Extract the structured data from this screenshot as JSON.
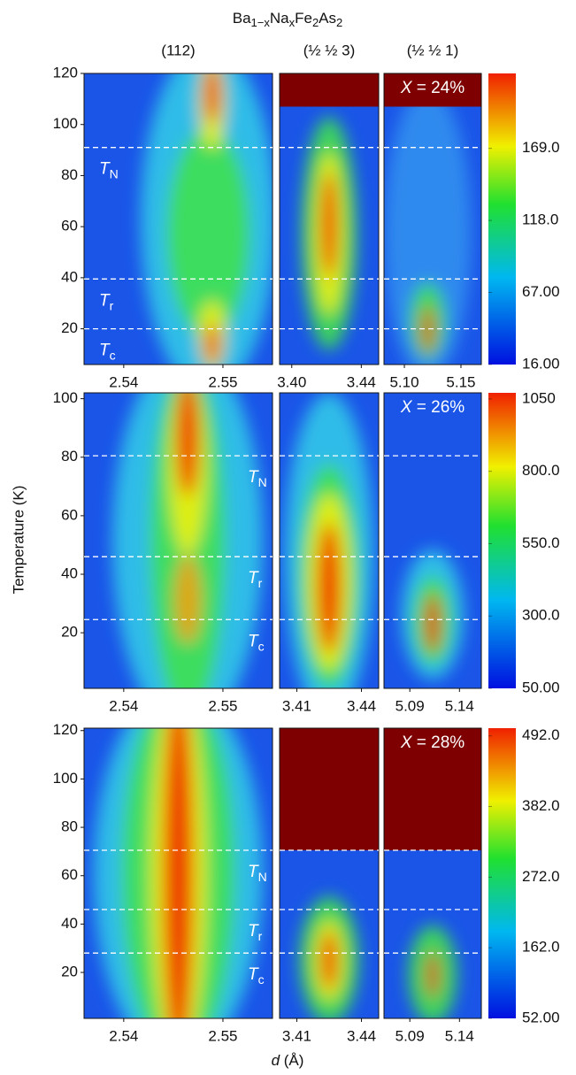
{
  "figure": {
    "title_parts": [
      {
        "text": "Ba"
      },
      {
        "text": "1−x",
        "sub": true
      },
      {
        "text": "Na"
      },
      {
        "text": "x",
        "sub": true
      },
      {
        "text": "Fe"
      },
      {
        "text": "2",
        "sub": true
      },
      {
        "text": "As"
      },
      {
        "text": "2",
        "sub": true
      }
    ],
    "column_headers": [
      "(112)",
      "(½ ½ 3)",
      "(½ ½ 1)"
    ],
    "y_label": "Temperature (K)",
    "x_label_parts": [
      "d",
      " (Å)"
    ]
  },
  "chart_data": [
    {
      "type": "heatmap",
      "composition": [
        "X",
        " = 24%"
      ],
      "ylim": [
        6,
        120
      ],
      "yticks": [
        20,
        40,
        60,
        80,
        100,
        120
      ],
      "panels": [
        {
          "xlim": [
            2.536,
            2.555
          ],
          "xticks": [
            2.54,
            2.55
          ]
        },
        {
          "xlim": [
            3.393,
            3.45
          ],
          "xticks": [
            {
              "value": 3.4,
              "label": "3.40"
            },
            3.44
          ]
        },
        {
          "xlim": [
            5.082,
            5.168
          ],
          "xticks": [
            {
              "value": 5.1,
              "label": "5.10"
            },
            5.15
          ]
        }
      ],
      "no_data_above": 107,
      "clim": [
        16,
        222
      ],
      "cticks": [
        {
          "value": 16,
          "label": "16.00"
        },
        {
          "value": 67,
          "label": "67.00"
        },
        {
          "value": 118,
          "label": "118.0"
        },
        {
          "value": 169,
          "label": "169.0"
        }
      ],
      "transitions": [
        {
          "symbol": "T",
          "subscript": "N",
          "value": 91
        },
        {
          "symbol": "T",
          "subscript": "r",
          "value": 39.5
        },
        {
          "symbol": "T",
          "subscript": "c",
          "value": 20
        }
      ]
    },
    {
      "type": "heatmap",
      "composition": [
        "X",
        " = 26%"
      ],
      "ylim": [
        1,
        102
      ],
      "yticks": [
        20,
        40,
        60,
        80,
        100
      ],
      "panels": [
        {
          "xlim": [
            2.536,
            2.555
          ],
          "xticks": [
            2.54,
            2.55
          ]
        },
        {
          "xlim": [
            3.402,
            3.448
          ],
          "xticks": [
            3.41,
            3.44
          ]
        },
        {
          "xlim": [
            5.064,
            5.162
          ],
          "xticks": [
            5.09,
            5.14
          ]
        }
      ],
      "clim": [
        50,
        1071
      ],
      "cticks": [
        {
          "value": 50,
          "label": "50.00"
        },
        {
          "value": 300,
          "label": "300.0"
        },
        {
          "value": 550,
          "label": "550.0"
        },
        {
          "value": 800,
          "label": "800.0"
        },
        1050
      ],
      "transitions": [
        {
          "symbol": "T",
          "subscript": "N",
          "value": 80.5
        },
        {
          "symbol": "T",
          "subscript": "r",
          "value": 46
        },
        {
          "symbol": "T",
          "subscript": "c",
          "value": 24.5
        }
      ]
    },
    {
      "type": "heatmap",
      "composition": [
        "X",
        " = 28%"
      ],
      "ylim": [
        1,
        121
      ],
      "yticks": [
        20,
        40,
        60,
        80,
        100,
        120
      ],
      "panels": [
        {
          "xlim": [
            2.536,
            2.555
          ],
          "xticks": [
            2.54,
            2.55
          ]
        },
        {
          "xlim": [
            3.402,
            3.448
          ],
          "xticks": [
            3.41,
            3.44
          ]
        },
        {
          "xlim": [
            5.064,
            5.162
          ],
          "xticks": [
            5.09,
            5.14
          ]
        }
      ],
      "no_data_above": 70.5,
      "clim": [
        52,
        504
      ],
      "cticks": [
        {
          "value": 52,
          "label": "52.00"
        },
        {
          "value": 162,
          "label": "162.0"
        },
        {
          "value": 272,
          "label": "272.0"
        },
        {
          "value": 382,
          "label": "382.0"
        },
        {
          "value": 492,
          "label": "492.0"
        }
      ],
      "transitions": [
        {
          "symbol": "T",
          "subscript": "N",
          "value": 70.5
        },
        {
          "symbol": "T",
          "subscript": "r",
          "value": 46
        },
        {
          "symbol": "T",
          "subscript": "c",
          "value": 28
        }
      ]
    }
  ]
}
